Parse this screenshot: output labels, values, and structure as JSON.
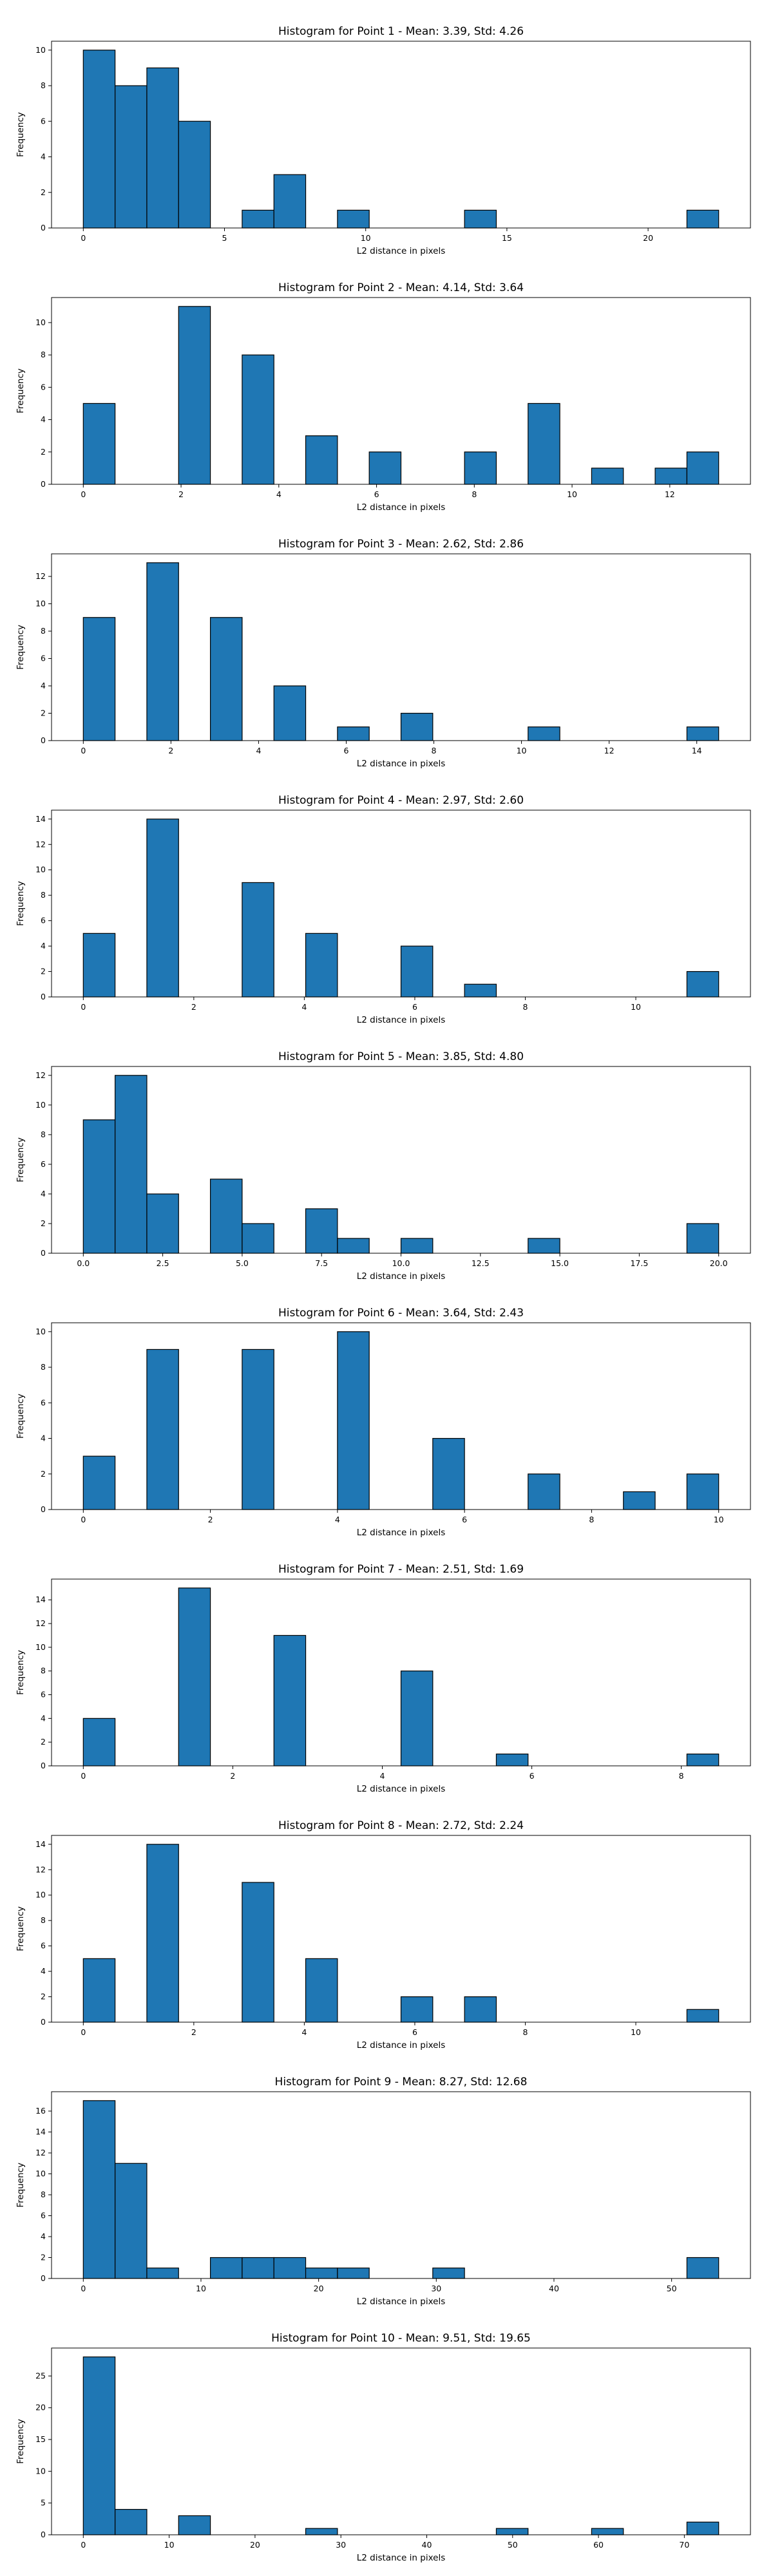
{
  "figure": {
    "background": "#ffffff",
    "bar_color": "#1f77b4",
    "edge_color": "#000000"
  },
  "chart_data": [
    {
      "type": "bar",
      "title": "Histogram for Point 1 - Mean: 3.39, Std: 4.26",
      "xlabel": "L2 distance in pixels",
      "ylabel": "Frequency",
      "bin_range": [
        0,
        22.5
      ],
      "bins": 20,
      "values": [
        10,
        8,
        9,
        6,
        0,
        1,
        3,
        0,
        1,
        0,
        0,
        0,
        1,
        0,
        0,
        0,
        0,
        0,
        0,
        1
      ],
      "xlim": [
        -1.125,
        23.625
      ],
      "ylim": [
        0,
        10.5
      ],
      "xticks": [
        0,
        5,
        10,
        15,
        20
      ],
      "yticks": [
        0,
        2,
        4,
        6,
        8,
        10
      ]
    },
    {
      "type": "bar",
      "title": "Histogram for Point 2 - Mean: 4.14, Std: 3.64",
      "xlabel": "L2 distance in pixels",
      "ylabel": "Frequency",
      "bin_range": [
        0,
        13
      ],
      "bins": 20,
      "values": [
        5,
        0,
        0,
        11,
        0,
        8,
        0,
        3,
        0,
        2,
        0,
        0,
        2,
        0,
        5,
        0,
        1,
        0,
        1,
        2
      ],
      "xlim": [
        -0.65,
        13.65
      ],
      "ylim": [
        0,
        11.55
      ],
      "xticks": [
        0,
        2,
        4,
        6,
        8,
        10,
        12
      ],
      "yticks": [
        0,
        2,
        4,
        6,
        8,
        10
      ]
    },
    {
      "type": "bar",
      "title": "Histogram for Point 3 - Mean: 2.62, Std: 2.86",
      "xlabel": "L2 distance in pixels",
      "ylabel": "Frequency",
      "bin_range": [
        0,
        14.5
      ],
      "bins": 20,
      "values": [
        9,
        0,
        13,
        0,
        9,
        0,
        4,
        0,
        1,
        0,
        2,
        0,
        0,
        0,
        1,
        0,
        0,
        0,
        0,
        1
      ],
      "xlim": [
        -0.725,
        15.225
      ],
      "ylim": [
        0,
        13.65
      ],
      "xticks": [
        0,
        2,
        4,
        6,
        8,
        10,
        12,
        14
      ],
      "yticks": [
        0,
        2,
        4,
        6,
        8,
        10,
        12
      ]
    },
    {
      "type": "bar",
      "title": "Histogram for Point 4 - Mean: 2.97, Std: 2.60",
      "xlabel": "L2 distance in pixels",
      "ylabel": "Frequency",
      "bin_range": [
        0,
        11.5
      ],
      "bins": 20,
      "values": [
        5,
        0,
        14,
        0,
        0,
        9,
        0,
        5,
        0,
        0,
        4,
        0,
        1,
        0,
        0,
        0,
        0,
        0,
        0,
        2
      ],
      "xlim": [
        -0.575,
        12.075
      ],
      "ylim": [
        0,
        14.7
      ],
      "xticks": [
        0,
        2,
        4,
        6,
        8,
        10
      ],
      "yticks": [
        0,
        2,
        4,
        6,
        8,
        10,
        12,
        14
      ]
    },
    {
      "type": "bar",
      "title": "Histogram for Point 5 - Mean: 3.85, Std: 4.80",
      "xlabel": "L2 distance in pixels",
      "ylabel": "Frequency",
      "bin_range": [
        0,
        20
      ],
      "bins": 20,
      "values": [
        9,
        12,
        4,
        0,
        5,
        2,
        0,
        3,
        1,
        0,
        1,
        0,
        0,
        0,
        1,
        0,
        0,
        0,
        0,
        2
      ],
      "xlim": [
        -1,
        21
      ],
      "ylim": [
        0,
        12.6
      ],
      "xticks": [
        0.0,
        2.5,
        5.0,
        7.5,
        10.0,
        12.5,
        15.0,
        17.5,
        20.0
      ],
      "yticks": [
        0,
        2,
        4,
        6,
        8,
        10,
        12
      ]
    },
    {
      "type": "bar",
      "title": "Histogram for Point 6 - Mean: 3.64, Std: 2.43",
      "xlabel": "L2 distance in pixels",
      "ylabel": "Frequency",
      "bin_range": [
        0,
        10
      ],
      "bins": 20,
      "values": [
        3,
        0,
        9,
        0,
        0,
        9,
        0,
        0,
        10,
        0,
        0,
        4,
        0,
        0,
        2,
        0,
        0,
        1,
        0,
        2
      ],
      "xlim": [
        -0.5,
        10.5
      ],
      "ylim": [
        0,
        10.5
      ],
      "xticks": [
        0,
        2,
        4,
        6,
        8,
        10
      ],
      "yticks": [
        0,
        2,
        4,
        6,
        8,
        10
      ]
    },
    {
      "type": "bar",
      "title": "Histogram for Point 7 - Mean: 2.51, Std: 1.69",
      "xlabel": "L2 distance in pixels",
      "ylabel": "Frequency",
      "bin_range": [
        0,
        8.5
      ],
      "bins": 20,
      "values": [
        4,
        0,
        0,
        15,
        0,
        0,
        11,
        0,
        0,
        0,
        8,
        0,
        0,
        1,
        0,
        0,
        0,
        0,
        0,
        1
      ],
      "xlim": [
        -0.425,
        8.925
      ],
      "ylim": [
        0,
        15.75
      ],
      "xticks": [
        0,
        2,
        4,
        6,
        8
      ],
      "yticks": [
        0,
        2,
        4,
        6,
        8,
        10,
        12,
        14
      ]
    },
    {
      "type": "bar",
      "title": "Histogram for Point 8 - Mean: 2.72, Std: 2.24",
      "xlabel": "L2 distance in pixels",
      "ylabel": "Frequency",
      "bin_range": [
        0,
        11.5
      ],
      "bins": 20,
      "values": [
        5,
        0,
        14,
        0,
        0,
        11,
        0,
        5,
        0,
        0,
        2,
        0,
        2,
        0,
        0,
        0,
        0,
        0,
        0,
        1
      ],
      "xlim": [
        -0.575,
        12.075
      ],
      "ylim": [
        0,
        14.7
      ],
      "xticks": [
        0,
        2,
        4,
        6,
        8,
        10
      ],
      "yticks": [
        0,
        2,
        4,
        6,
        8,
        10,
        12,
        14
      ]
    },
    {
      "type": "bar",
      "title": "Histogram for Point 9 - Mean: 8.27, Std: 12.68",
      "xlabel": "L2 distance in pixels",
      "ylabel": "Frequency",
      "bin_range": [
        0,
        54
      ],
      "bins": 20,
      "values": [
        17,
        11,
        1,
        0,
        2,
        2,
        2,
        1,
        1,
        0,
        0,
        1,
        0,
        0,
        0,
        0,
        0,
        0,
        0,
        2
      ],
      "xlim": [
        -2.7,
        56.7
      ],
      "ylim": [
        0,
        17.85
      ],
      "xticks": [
        0,
        10,
        20,
        30,
        40,
        50
      ],
      "yticks": [
        0,
        2,
        4,
        6,
        8,
        10,
        12,
        14,
        16
      ]
    },
    {
      "type": "bar",
      "title": "Histogram for Point 10 - Mean: 9.51, Std: 19.65",
      "xlabel": "L2 distance in pixels",
      "ylabel": "Frequency",
      "bin_range": [
        0,
        74
      ],
      "bins": 20,
      "values": [
        28,
        4,
        0,
        3,
        0,
        0,
        0,
        1,
        0,
        0,
        0,
        0,
        0,
        1,
        0,
        0,
        1,
        0,
        0,
        2
      ],
      "xlim": [
        -3.7,
        77.7
      ],
      "ylim": [
        0,
        29.4
      ],
      "xticks": [
        0,
        10,
        20,
        30,
        40,
        50,
        60,
        70
      ],
      "yticks": [
        0,
        5,
        10,
        15,
        20,
        25
      ]
    }
  ]
}
